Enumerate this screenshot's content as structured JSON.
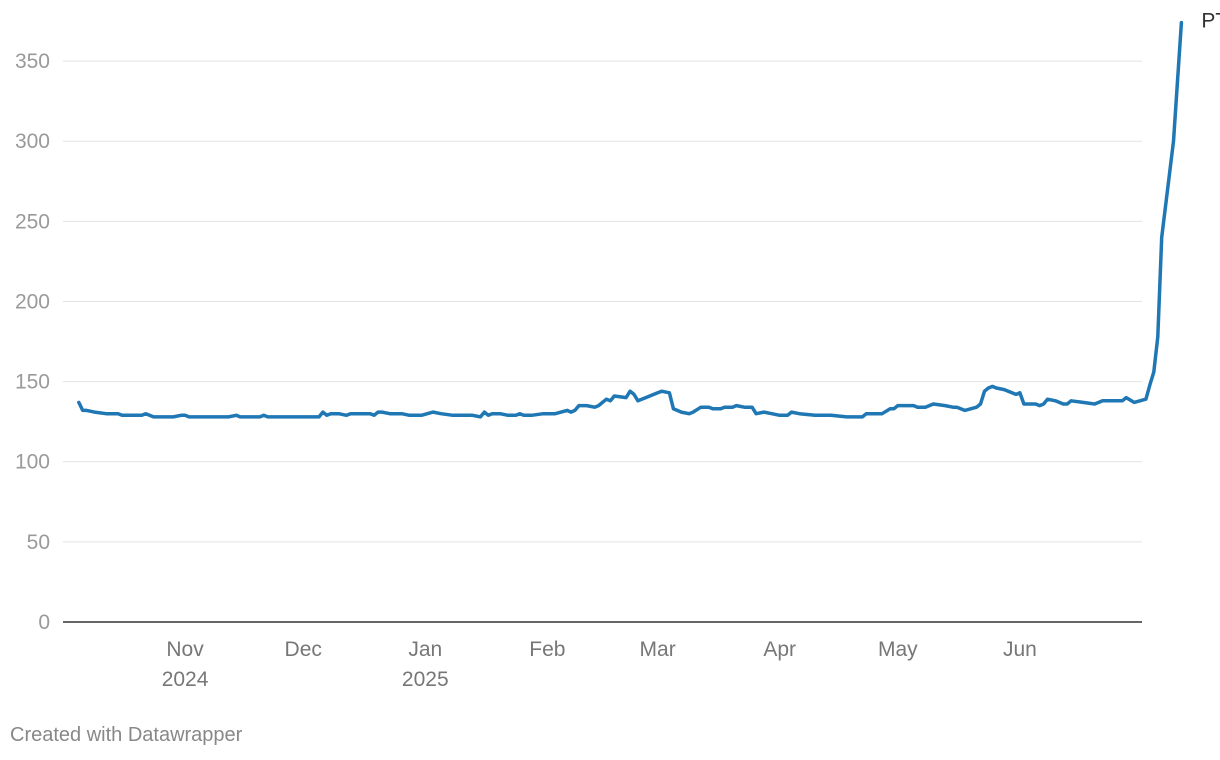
{
  "chart_data": {
    "type": "line",
    "title": "",
    "xlabel": "",
    "ylabel": "",
    "ylim": [
      0,
      375
    ],
    "yticks": [
      0,
      50,
      100,
      150,
      200,
      250,
      300,
      350
    ],
    "xlim": [
      "2024-10-01",
      "2025-07-02"
    ],
    "xticks": [
      {
        "date": "2024-11-01",
        "label": "Nov",
        "year": "2024"
      },
      {
        "date": "2024-12-01",
        "label": "Dec",
        "year": ""
      },
      {
        "date": "2025-01-01",
        "label": "Jan",
        "year": "2025"
      },
      {
        "date": "2025-02-01",
        "label": "Feb",
        "year": ""
      },
      {
        "date": "2025-03-01",
        "label": "Mar",
        "year": ""
      },
      {
        "date": "2025-04-01",
        "label": "Apr",
        "year": ""
      },
      {
        "date": "2025-05-01",
        "label": "May",
        "year": ""
      },
      {
        "date": "2025-06-01",
        "label": "Jun",
        "year": ""
      }
    ],
    "grid": true,
    "series": [
      {
        "name": "PTMR",
        "color": "#1f77b4",
        "points": [
          [
            "2024-10-05",
            137
          ],
          [
            "2024-10-06",
            132
          ],
          [
            "2024-10-07",
            132
          ],
          [
            "2024-10-09",
            131
          ],
          [
            "2024-10-12",
            130
          ],
          [
            "2024-10-15",
            130
          ],
          [
            "2024-10-16",
            129
          ],
          [
            "2024-10-19",
            129
          ],
          [
            "2024-10-21",
            129
          ],
          [
            "2024-10-22",
            130
          ],
          [
            "2024-10-24",
            128
          ],
          [
            "2024-10-27",
            128
          ],
          [
            "2024-10-29",
            128
          ],
          [
            "2024-10-31",
            129
          ],
          [
            "2024-11-01",
            129
          ],
          [
            "2024-11-02",
            128
          ],
          [
            "2024-11-05",
            128
          ],
          [
            "2024-11-08",
            128
          ],
          [
            "2024-11-11",
            128
          ],
          [
            "2024-11-12",
            128
          ],
          [
            "2024-11-14",
            129
          ],
          [
            "2024-11-15",
            128
          ],
          [
            "2024-11-18",
            128
          ],
          [
            "2024-11-20",
            128
          ],
          [
            "2024-11-21",
            129
          ],
          [
            "2024-11-22",
            128
          ],
          [
            "2024-11-25",
            128
          ],
          [
            "2024-11-28",
            128
          ],
          [
            "2024-12-01",
            128
          ],
          [
            "2024-12-04",
            128
          ],
          [
            "2024-12-05",
            128
          ],
          [
            "2024-12-06",
            131
          ],
          [
            "2024-12-07",
            129
          ],
          [
            "2024-12-08",
            130
          ],
          [
            "2024-12-10",
            130
          ],
          [
            "2024-12-12",
            129
          ],
          [
            "2024-12-13",
            130
          ],
          [
            "2024-12-15",
            130
          ],
          [
            "2024-12-18",
            130
          ],
          [
            "2024-12-19",
            129
          ],
          [
            "2024-12-20",
            131
          ],
          [
            "2024-12-21",
            131
          ],
          [
            "2024-12-23",
            130
          ],
          [
            "2024-12-26",
            130
          ],
          [
            "2024-12-28",
            129
          ],
          [
            "2024-12-31",
            129
          ],
          [
            "2025-01-03",
            131
          ],
          [
            "2025-01-05",
            130
          ],
          [
            "2025-01-08",
            129
          ],
          [
            "2025-01-11",
            129
          ],
          [
            "2025-01-13",
            129
          ],
          [
            "2025-01-15",
            128
          ],
          [
            "2025-01-16",
            131
          ],
          [
            "2025-01-17",
            129
          ],
          [
            "2025-01-18",
            130
          ],
          [
            "2025-01-20",
            130
          ],
          [
            "2025-01-22",
            129
          ],
          [
            "2025-01-24",
            129
          ],
          [
            "2025-01-25",
            130
          ],
          [
            "2025-01-26",
            129
          ],
          [
            "2025-01-28",
            129
          ],
          [
            "2025-01-31",
            130
          ],
          [
            "2025-02-03",
            130
          ],
          [
            "2025-02-06",
            132
          ],
          [
            "2025-02-07",
            131
          ],
          [
            "2025-02-08",
            132
          ],
          [
            "2025-02-09",
            135
          ],
          [
            "2025-02-11",
            135
          ],
          [
            "2025-02-13",
            134
          ],
          [
            "2025-02-14",
            135
          ],
          [
            "2025-02-15",
            137
          ],
          [
            "2025-02-16",
            139
          ],
          [
            "2025-02-17",
            138
          ],
          [
            "2025-02-18",
            141
          ],
          [
            "2025-02-21",
            140
          ],
          [
            "2025-02-22",
            144
          ],
          [
            "2025-02-23",
            142
          ],
          [
            "2025-02-24",
            138
          ],
          [
            "2025-02-26",
            140
          ],
          [
            "2025-02-28",
            142
          ],
          [
            "2025-03-02",
            144
          ],
          [
            "2025-03-04",
            143
          ],
          [
            "2025-03-05",
            133
          ],
          [
            "2025-03-07",
            131
          ],
          [
            "2025-03-09",
            130
          ],
          [
            "2025-03-10",
            131
          ],
          [
            "2025-03-12",
            134
          ],
          [
            "2025-03-14",
            134
          ],
          [
            "2025-03-15",
            133
          ],
          [
            "2025-03-17",
            133
          ],
          [
            "2025-03-18",
            134
          ],
          [
            "2025-03-20",
            134
          ],
          [
            "2025-03-21",
            135
          ],
          [
            "2025-03-23",
            134
          ],
          [
            "2025-03-25",
            134
          ],
          [
            "2025-03-26",
            130
          ],
          [
            "2025-03-28",
            131
          ],
          [
            "2025-03-30",
            130
          ],
          [
            "2025-04-01",
            129
          ],
          [
            "2025-04-03",
            129
          ],
          [
            "2025-04-04",
            131
          ],
          [
            "2025-04-06",
            130
          ],
          [
            "2025-04-10",
            129
          ],
          [
            "2025-04-14",
            129
          ],
          [
            "2025-04-18",
            128
          ],
          [
            "2025-04-22",
            128
          ],
          [
            "2025-04-23",
            130
          ],
          [
            "2025-04-25",
            130
          ],
          [
            "2025-04-27",
            130
          ],
          [
            "2025-04-29",
            133
          ],
          [
            "2025-04-30",
            133
          ],
          [
            "2025-05-01",
            135
          ],
          [
            "2025-05-03",
            135
          ],
          [
            "2025-05-05",
            135
          ],
          [
            "2025-05-06",
            134
          ],
          [
            "2025-05-08",
            134
          ],
          [
            "2025-05-10",
            136
          ],
          [
            "2025-05-13",
            135
          ],
          [
            "2025-05-15",
            134
          ],
          [
            "2025-05-16",
            134
          ],
          [
            "2025-05-18",
            132
          ],
          [
            "2025-05-21",
            134
          ],
          [
            "2025-05-22",
            136
          ],
          [
            "2025-05-23",
            144
          ],
          [
            "2025-05-24",
            146
          ],
          [
            "2025-05-25",
            147
          ],
          [
            "2025-05-26",
            146
          ],
          [
            "2025-05-28",
            145
          ],
          [
            "2025-05-31",
            142
          ],
          [
            "2025-06-01",
            143
          ],
          [
            "2025-06-02",
            136
          ],
          [
            "2025-06-05",
            136
          ],
          [
            "2025-06-06",
            135
          ],
          [
            "2025-06-07",
            136
          ],
          [
            "2025-06-08",
            139
          ],
          [
            "2025-06-10",
            138
          ],
          [
            "2025-06-12",
            136
          ],
          [
            "2025-06-13",
            136
          ],
          [
            "2025-06-14",
            138
          ],
          [
            "2025-06-17",
            137
          ],
          [
            "2025-06-20",
            136
          ],
          [
            "2025-06-22",
            138
          ],
          [
            "2025-06-24",
            138
          ],
          [
            "2025-06-27",
            138
          ],
          [
            "2025-06-28",
            140
          ],
          [
            "2025-06-30",
            137
          ],
          [
            "2025-07-03",
            139
          ],
          [
            "2025-07-04",
            148
          ],
          [
            "2025-07-05",
            156
          ],
          [
            "2025-07-06",
            178
          ],
          [
            "2025-07-07",
            240
          ],
          [
            "2025-07-10",
            300
          ],
          [
            "2025-07-12",
            374
          ]
        ]
      }
    ]
  },
  "footer": {
    "credit": "Created with Datawrapper"
  }
}
